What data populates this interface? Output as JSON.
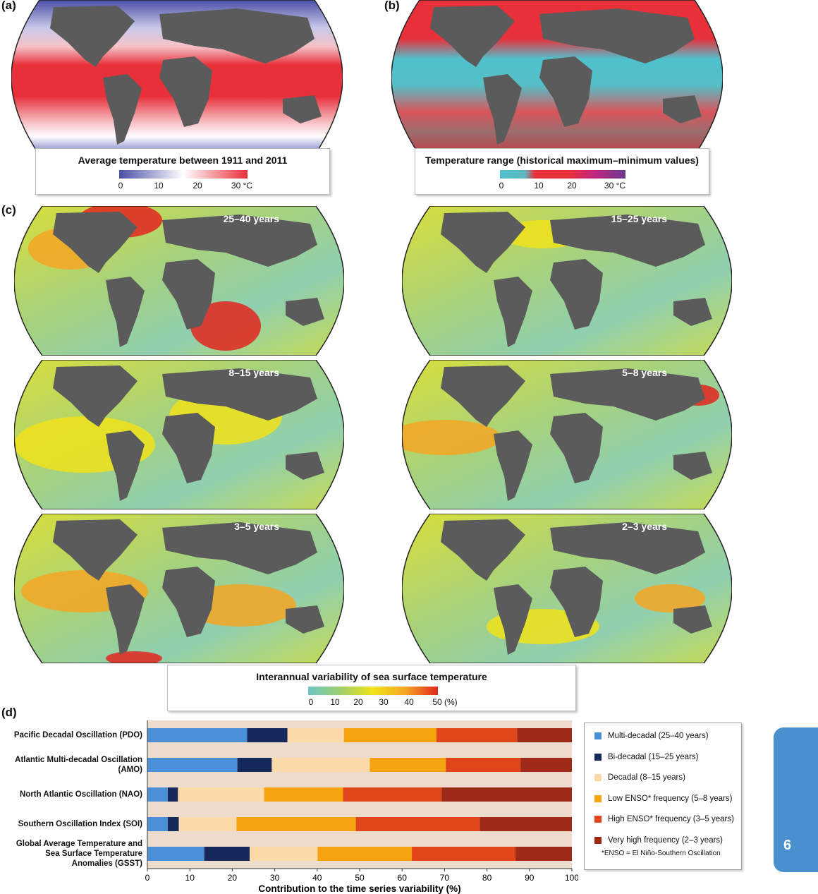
{
  "panels": {
    "a": "(a)",
    "b": "(b)",
    "c": "(c)",
    "d": "(d)"
  },
  "legend_a": {
    "title": "Average temperature between 1911 and 2011",
    "ticks": [
      "0",
      "10",
      "20",
      "30 °C"
    ],
    "colors": [
      "#4a4fa6",
      "#ffffff",
      "#e8303a"
    ]
  },
  "legend_b": {
    "title": "Temperature range (historical maximum–minimum values)",
    "ticks": [
      "0",
      "10",
      "20",
      "30 °C"
    ],
    "colors": [
      "#4fc1cc",
      "#e8303a",
      "#c0267e",
      "#6a3a8e"
    ]
  },
  "variability_maps": [
    {
      "period": "25–40 years"
    },
    {
      "period": "15–25 years"
    },
    {
      "period": "8–15 years"
    },
    {
      "period": "5–8 years"
    },
    {
      "period": "3–5 years"
    },
    {
      "period": "2–3 years"
    }
  ],
  "legend_c": {
    "title": "Interannual variability of sea surface temperature",
    "ticks": [
      "0",
      "10",
      "20",
      "30",
      "40",
      "50 (%)"
    ],
    "colors": [
      "#6cc6c6",
      "#9fcf6a",
      "#f0e21a",
      "#f5a623",
      "#e2261e"
    ]
  },
  "chart_data": {
    "type": "bar",
    "orientation": "horizontal-stacked",
    "categories": [
      "Pacific Decadal Oscillation (PDO)",
      "Atlantic Multi-decadal Oscillation (AMO)",
      "North Atlantic Oscillation (NAO)",
      "Southern Oscillation Index (SOI)",
      "Global Average Temperature and Sea Surface Temperature Anomalies (GSST)"
    ],
    "category_lines": [
      [
        "Pacific Decadal Oscillation (PDO)"
      ],
      [
        "Atlantic Multi-decadal Oscillation",
        "(AMO)"
      ],
      [
        "North Atlantic Oscillation (NAO)"
      ],
      [
        "Southern Oscillation Index (SOI)"
      ],
      [
        "Global Average Temperature and",
        "Sea Surface Temperature",
        "Anomalies (GSST)"
      ]
    ],
    "series": [
      {
        "name": "Multi-decadal (25–40 years)",
        "color": "#4a90d9",
        "values": [
          23.5,
          21.2,
          4.8,
          4.8,
          13.4
        ]
      },
      {
        "name": "Bi-decadal (15–25 years)",
        "color": "#17295a",
        "values": [
          9.5,
          8.1,
          2.4,
          2.6,
          10.7
        ]
      },
      {
        "name": "Decadal (8–15 years)",
        "color": "#fcd9a8",
        "values": [
          13.3,
          23.1,
          20.3,
          13.6,
          16.0
        ]
      },
      {
        "name": "Low ENSO* frequency (5–8 years)",
        "color": "#f5a40e",
        "values": [
          21.8,
          17.9,
          18.6,
          28.1,
          22.2
        ]
      },
      {
        "name": "High ENSO* frequency (3–5 years)",
        "color": "#e0461a",
        "values": [
          19.0,
          17.6,
          23.2,
          29.2,
          24.4
        ]
      },
      {
        "name": "Very high frequency (2–3 years)",
        "color": "#a02a18",
        "values": [
          12.9,
          12.1,
          30.7,
          21.7,
          13.3
        ]
      }
    ],
    "note": "*ENSO = El Niño-Southern Oscillation",
    "xlabel": "Contribution to the time series variability (%)",
    "xticks": [
      "0",
      "10",
      "20",
      "30",
      "40",
      "50",
      "60",
      "70",
      "80",
      "90",
      "100"
    ],
    "xlim": [
      0,
      100
    ],
    "grid": false,
    "legend_position": "right"
  },
  "chapter_tab": "6"
}
